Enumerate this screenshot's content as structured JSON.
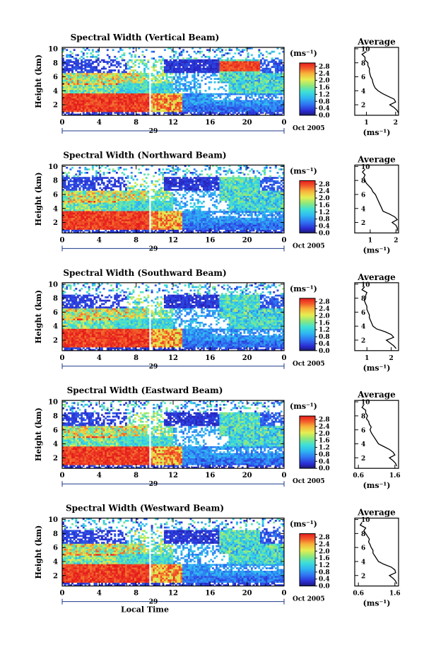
{
  "chart_data": [
    {
      "type": "heatmap",
      "title": "Spectral Width (Vertical Beam)",
      "ylabel": "Height (km)",
      "xlabel": "",
      "x_ticks": [
        "0",
        "4",
        "8",
        "12",
        "16",
        "20",
        "0"
      ],
      "y_ticks": [
        "2",
        "4",
        "6",
        "8",
        "10"
      ],
      "xlim": [
        0,
        24
      ],
      "ylim": [
        0.5,
        10.2
      ],
      "date_day": "29",
      "date_label": "Oct 2005",
      "colorbar": {
        "unit": "(ms⁻¹)",
        "ticks": [
          "0.0",
          "0.4",
          "0.8",
          "1.2",
          "1.6",
          "2.0",
          "2.4",
          "2.8"
        ],
        "range": [
          0,
          3.0
        ]
      },
      "average": {
        "title": "Average",
        "xlabel": "(ms⁻¹)",
        "x_ticks": [
          "1",
          "2"
        ],
        "xlim": [
          0.6,
          2.1
        ],
        "y_ticks": [
          "2",
          "4",
          "6",
          "8",
          "10"
        ],
        "profile": [
          [
            9.6,
            1.0
          ],
          [
            9.2,
            0.85
          ],
          [
            8.8,
            0.95
          ],
          [
            8.4,
            0.95
          ],
          [
            8.0,
            1.05
          ],
          [
            7.6,
            1.05
          ],
          [
            7.2,
            1.1
          ],
          [
            6.8,
            1.1
          ],
          [
            6.4,
            1.12
          ],
          [
            6.0,
            1.15
          ],
          [
            5.6,
            1.2
          ],
          [
            5.2,
            1.22
          ],
          [
            4.8,
            1.25
          ],
          [
            4.4,
            1.3
          ],
          [
            4.0,
            1.4
          ],
          [
            3.6,
            1.55
          ],
          [
            3.2,
            1.75
          ],
          [
            2.8,
            1.95
          ],
          [
            2.4,
            2.0
          ],
          [
            2.0,
            1.8
          ],
          [
            1.6,
            1.95
          ],
          [
            1.2,
            2.05
          ],
          [
            0.8,
            2.1
          ]
        ]
      }
    },
    {
      "type": "heatmap",
      "title": "Spectral Width (Northward Beam)",
      "ylabel": "Height (km)",
      "xlabel": "",
      "x_ticks": [
        "0",
        "4",
        "8",
        "12",
        "16",
        "20",
        "0"
      ],
      "y_ticks": [
        "2",
        "4",
        "6",
        "8",
        "10"
      ],
      "xlim": [
        0,
        24
      ],
      "ylim": [
        0.5,
        10.2
      ],
      "date_day": "29",
      "date_label": "Oct 2005",
      "colorbar": {
        "unit": "(ms⁻¹)",
        "ticks": [
          "0.0",
          "0.4",
          "0.8",
          "1.2",
          "1.6",
          "2.0",
          "2.4",
          "2.8"
        ],
        "range": [
          0,
          3.0
        ]
      },
      "average": {
        "title": "Average",
        "xlabel": "(ms⁻¹)",
        "x_ticks": [
          "1",
          "2"
        ],
        "xlim": [
          0.4,
          2.1
        ],
        "y_ticks": [
          "2",
          "4",
          "6",
          "8",
          "10"
        ],
        "profile": [
          [
            9.6,
            0.8
          ],
          [
            9.2,
            0.7
          ],
          [
            8.8,
            0.8
          ],
          [
            8.4,
            0.75
          ],
          [
            8.0,
            0.8
          ],
          [
            7.6,
            0.85
          ],
          [
            7.2,
            0.95
          ],
          [
            6.8,
            1.05
          ],
          [
            6.4,
            1.1
          ],
          [
            6.0,
            1.2
          ],
          [
            5.6,
            1.25
          ],
          [
            5.2,
            1.3
          ],
          [
            4.8,
            1.35
          ],
          [
            4.4,
            1.4
          ],
          [
            4.0,
            1.45
          ],
          [
            3.6,
            1.5
          ],
          [
            3.2,
            1.75
          ],
          [
            2.8,
            1.95
          ],
          [
            2.4,
            2.05
          ],
          [
            2.0,
            1.85
          ],
          [
            1.6,
            2.0
          ],
          [
            1.2,
            2.05
          ],
          [
            0.8,
            2.05
          ]
        ]
      }
    },
    {
      "type": "heatmap",
      "title": "Spectral Width (Southward Beam)",
      "ylabel": "Height (km)",
      "xlabel": "",
      "x_ticks": [
        "0",
        "4",
        "8",
        "12",
        "16",
        "20",
        "0"
      ],
      "y_ticks": [
        "2",
        "4",
        "6",
        "8",
        "10"
      ],
      "xlim": [
        0,
        24
      ],
      "ylim": [
        0.5,
        10.2
      ],
      "date_day": "29",
      "date_label": "Oct 2005",
      "colorbar": {
        "unit": "(ms⁻¹)",
        "ticks": [
          "0.0",
          "0.4",
          "0.8",
          "1.2",
          "1.6",
          "2.0",
          "2.4",
          "2.8"
        ],
        "range": [
          0,
          3.0
        ]
      },
      "average": {
        "title": "Average",
        "xlabel": "(ms⁻¹)",
        "x_ticks": [
          "1",
          "2"
        ],
        "xlim": [
          0.5,
          2.3
        ],
        "y_ticks": [
          "2",
          "4",
          "6",
          "8",
          "10"
        ],
        "profile": [
          [
            9.6,
            0.9
          ],
          [
            9.2,
            0.8
          ],
          [
            8.8,
            1.0
          ],
          [
            8.4,
            0.95
          ],
          [
            8.0,
            0.95
          ],
          [
            7.6,
            0.9
          ],
          [
            7.2,
            0.95
          ],
          [
            6.8,
            1.0
          ],
          [
            6.4,
            1.0
          ],
          [
            6.0,
            1.05
          ],
          [
            5.6,
            1.1
          ],
          [
            5.2,
            1.1
          ],
          [
            4.8,
            1.15
          ],
          [
            4.4,
            1.2
          ],
          [
            4.0,
            1.25
          ],
          [
            3.6,
            1.4
          ],
          [
            3.2,
            1.75
          ],
          [
            2.8,
            2.0
          ],
          [
            2.4,
            2.1
          ],
          [
            2.0,
            1.8
          ],
          [
            1.6,
            1.95
          ],
          [
            1.2,
            2.1
          ],
          [
            0.8,
            2.2
          ]
        ]
      }
    },
    {
      "type": "heatmap",
      "title": "Spectral Width (Eastward Beam)",
      "ylabel": "Height (km)",
      "xlabel": "",
      "x_ticks": [
        "0",
        "4",
        "8",
        "12",
        "16",
        "20",
        "0"
      ],
      "y_ticks": [
        "2",
        "4",
        "6",
        "8",
        "10"
      ],
      "xlim": [
        0,
        24
      ],
      "ylim": [
        0.5,
        10.2
      ],
      "date_day": "29",
      "date_label": "Oct 2005",
      "colorbar": {
        "unit": "(ms⁻¹)",
        "ticks": [
          "0.0",
          "0.4",
          "0.8",
          "1.2",
          "1.6",
          "2.0",
          "2.4",
          "2.8"
        ],
        "range": [
          0,
          3.0
        ]
      },
      "average": {
        "title": "Average",
        "xlabel": "(ms⁻¹)",
        "x_ticks": [
          "0.6",
          "1.6"
        ],
        "xlim": [
          0.5,
          1.7
        ],
        "y_ticks": [
          "2",
          "4",
          "6",
          "8",
          "10"
        ],
        "profile": [
          [
            9.6,
            0.75
          ],
          [
            9.2,
            0.7
          ],
          [
            8.8,
            0.8
          ],
          [
            8.4,
            0.8
          ],
          [
            8.0,
            0.85
          ],
          [
            7.6,
            0.82
          ],
          [
            7.2,
            0.88
          ],
          [
            6.8,
            0.9
          ],
          [
            6.4,
            0.95
          ],
          [
            6.0,
            0.92
          ],
          [
            5.6,
            0.95
          ],
          [
            5.2,
            1.0
          ],
          [
            4.8,
            1.05
          ],
          [
            4.4,
            1.1
          ],
          [
            4.0,
            1.15
          ],
          [
            3.6,
            1.3
          ],
          [
            3.2,
            1.45
          ],
          [
            2.8,
            1.55
          ],
          [
            2.4,
            1.6
          ],
          [
            2.0,
            1.45
          ],
          [
            1.6,
            1.55
          ],
          [
            1.2,
            1.62
          ],
          [
            0.8,
            1.65
          ]
        ]
      }
    },
    {
      "type": "heatmap",
      "title": "Spectral Width (Westward Beam)",
      "ylabel": "Height (km)",
      "xlabel": "Local Time",
      "x_ticks": [
        "0",
        "4",
        "8",
        "12",
        "16",
        "20",
        "0"
      ],
      "y_ticks": [
        "2",
        "4",
        "6",
        "8",
        "10"
      ],
      "xlim": [
        0,
        24
      ],
      "ylim": [
        0.5,
        10.2
      ],
      "date_day": "29",
      "date_label": "Oct 2005",
      "colorbar": {
        "unit": "(ms⁻¹)",
        "ticks": [
          "0.0",
          "0.4",
          "0.8",
          "1.2",
          "1.6",
          "2.0",
          "2.4",
          "2.8"
        ],
        "range": [
          0,
          3.0
        ]
      },
      "average": {
        "title": "Average",
        "xlabel": "(ms⁻¹)",
        "x_ticks": [
          "0.6",
          "1.6"
        ],
        "xlim": [
          0.5,
          1.7
        ],
        "y_ticks": [
          "2",
          "4",
          "6",
          "8",
          "10"
        ],
        "profile": [
          [
            9.6,
            0.7
          ],
          [
            9.2,
            0.65
          ],
          [
            8.8,
            0.8
          ],
          [
            8.4,
            0.75
          ],
          [
            8.0,
            0.8
          ],
          [
            7.6,
            0.85
          ],
          [
            7.2,
            0.9
          ],
          [
            6.8,
            0.88
          ],
          [
            6.4,
            0.92
          ],
          [
            6.0,
            0.95
          ],
          [
            5.6,
            1.0
          ],
          [
            5.2,
            1.0
          ],
          [
            4.8,
            1.05
          ],
          [
            4.4,
            1.1
          ],
          [
            4.0,
            1.15
          ],
          [
            3.6,
            1.3
          ],
          [
            3.2,
            1.5
          ],
          [
            2.8,
            1.6
          ],
          [
            2.4,
            1.62
          ],
          [
            2.0,
            1.45
          ],
          [
            1.6,
            1.55
          ],
          [
            1.2,
            1.62
          ],
          [
            0.8,
            1.65
          ]
        ]
      }
    }
  ]
}
